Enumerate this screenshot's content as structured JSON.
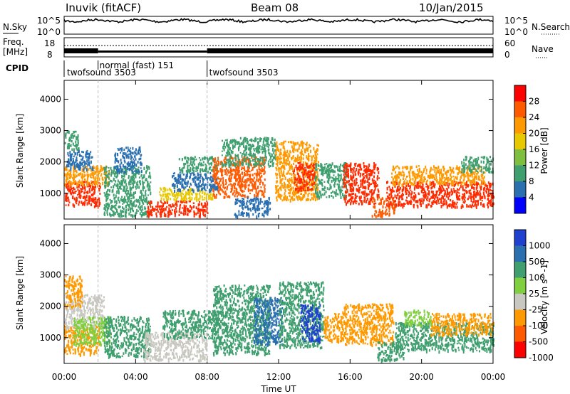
{
  "header": {
    "title": "Inuvik (fitACF)",
    "beam": "Beam 08",
    "date": "10/Jan/2015"
  },
  "nsky_panel": {
    "left_label": "N.Sky",
    "right_label": "N.Search",
    "ticks_left": [
      "10^5",
      "10^0"
    ],
    "ticks_right": [
      "10^5",
      "10^0"
    ]
  },
  "freq_panel": {
    "left_label_1": "Freq.",
    "left_label_2": "[MHz]",
    "right_label": "Nave",
    "ticks_left": [
      "18",
      "8"
    ],
    "ticks_right": [
      "60",
      "0"
    ]
  },
  "cpid": {
    "label": "CPID",
    "modes": [
      {
        "name": "twofsound 3503",
        "start_hour": 0,
        "end_hour": 1.9
      },
      {
        "name": "normal (fast) 151",
        "start_hour": 1.9,
        "end_hour": 8.0
      },
      {
        "name": "twofsound 3503",
        "start_hour": 8.0,
        "end_hour": 24
      }
    ]
  },
  "chart_data": [
    {
      "type": "heatmap",
      "quantity": "Power",
      "ylabel": "Slant Range [km]",
      "colorbar_label": "Power [dB]",
      "yticks": [
        1000,
        2000,
        3000,
        4000
      ],
      "colorbar_ticks": [
        "28",
        "24",
        "20",
        "16",
        "12",
        "8",
        "4"
      ],
      "colorbar_colors": [
        "#ff0000",
        "#ff5a00",
        "#ff9900",
        "#e8c800",
        "#7fbf3f",
        "#3f9f6f",
        "#2a6fb0",
        "#0000ff"
      ],
      "regions": [
        {
          "t0": 0.0,
          "t1": 2.0,
          "r0": 600,
          "r1": 1400,
          "color": "#ff2a00"
        },
        {
          "t0": 0.0,
          "t1": 2.5,
          "r0": 1300,
          "r1": 1900,
          "color": "#ff9900"
        },
        {
          "t0": 0.1,
          "t1": 1.6,
          "r0": 1800,
          "r1": 2400,
          "color": "#2a6fb0"
        },
        {
          "t0": 0.0,
          "t1": 0.8,
          "r0": 2400,
          "r1": 3000,
          "color": "#3f9f6f"
        },
        {
          "t0": 2.2,
          "t1": 4.8,
          "r0": 300,
          "r1": 1900,
          "color": "#3f9f6f"
        },
        {
          "t0": 2.8,
          "t1": 4.3,
          "r0": 1700,
          "r1": 2500,
          "color": "#2a6fb0"
        },
        {
          "t0": 4.6,
          "t1": 8.0,
          "r0": 300,
          "r1": 800,
          "color": "#ff2a00"
        },
        {
          "t0": 5.3,
          "t1": 8.3,
          "r0": 800,
          "r1": 1200,
          "color": "#e8c800"
        },
        {
          "t0": 6.0,
          "t1": 8.6,
          "r0": 1100,
          "r1": 1700,
          "color": "#2a6fb0"
        },
        {
          "t0": 6.4,
          "t1": 8.6,
          "r0": 1700,
          "r1": 2200,
          "color": "#3f9f6f"
        },
        {
          "t0": 8.3,
          "t1": 11.2,
          "r0": 900,
          "r1": 2200,
          "color": "#ff5a00"
        },
        {
          "t0": 8.8,
          "t1": 11.8,
          "r0": 1900,
          "r1": 2800,
          "color": "#3f9f6f"
        },
        {
          "t0": 9.5,
          "t1": 11.5,
          "r0": 300,
          "r1": 900,
          "color": "#2a6fb0"
        },
        {
          "t0": 11.8,
          "t1": 14.2,
          "r0": 800,
          "r1": 2700,
          "color": "#ff9900"
        },
        {
          "t0": 12.8,
          "t1": 14.0,
          "r0": 1100,
          "r1": 2000,
          "color": "#ff2a00"
        },
        {
          "t0": 14.0,
          "t1": 15.8,
          "r0": 900,
          "r1": 2000,
          "color": "#3f9f6f"
        },
        {
          "t0": 15.6,
          "t1": 17.6,
          "r0": 700,
          "r1": 2000,
          "color": "#ff2a00"
        },
        {
          "t0": 17.2,
          "t1": 18.5,
          "r0": 300,
          "r1": 900,
          "color": "#ff5a00"
        },
        {
          "t0": 18.0,
          "t1": 24.0,
          "r0": 600,
          "r1": 1400,
          "color": "#ff2a00"
        },
        {
          "t0": 18.3,
          "t1": 23.5,
          "r0": 1300,
          "r1": 1900,
          "color": "#ff9900"
        },
        {
          "t0": 22.2,
          "t1": 24.0,
          "r0": 1700,
          "r1": 2200,
          "color": "#3f9f6f"
        }
      ]
    },
    {
      "type": "heatmap",
      "quantity": "Velocity",
      "ylabel": "Slant Range [km]",
      "colorbar_label": "Velocity [m s^-1]",
      "yticks": [
        1000,
        2000,
        3000,
        4000
      ],
      "colorbar_ticks": [
        "1000",
        "500",
        "100",
        "25",
        "-25",
        "-100",
        "-500",
        "-1000"
      ],
      "colorbar_colors": [
        "#2040d0",
        "#2a6fb0",
        "#3f9f6f",
        "#7fcf3f",
        "#c8c8c0",
        "#ff9900",
        "#ff5a00",
        "#ff0000"
      ],
      "regions": [
        {
          "t0": 0.0,
          "t1": 2.0,
          "r0": 500,
          "r1": 1400,
          "color": "#ff9900"
        },
        {
          "t0": 0.0,
          "t1": 2.2,
          "r0": 1300,
          "r1": 2400,
          "color": "#c8c8c0"
        },
        {
          "t0": 0.5,
          "t1": 2.6,
          "r0": 800,
          "r1": 1700,
          "color": "#7fcf3f"
        },
        {
          "t0": 0.0,
          "t1": 1.0,
          "r0": 2000,
          "r1": 3000,
          "color": "#ff9900"
        },
        {
          "t0": 2.2,
          "t1": 4.8,
          "r0": 400,
          "r1": 1700,
          "color": "#3f9f6f"
        },
        {
          "t0": 4.4,
          "t1": 8.0,
          "r0": 300,
          "r1": 1200,
          "color": "#c8c8c0"
        },
        {
          "t0": 5.5,
          "t1": 8.6,
          "r0": 1000,
          "r1": 1900,
          "color": "#3f9f6f"
        },
        {
          "t0": 8.3,
          "t1": 11.5,
          "r0": 500,
          "r1": 2700,
          "color": "#3f9f6f"
        },
        {
          "t0": 10.6,
          "t1": 12.2,
          "r0": 800,
          "r1": 2300,
          "color": "#2a6fb0"
        },
        {
          "t0": 12.0,
          "t1": 14.5,
          "r0": 700,
          "r1": 2800,
          "color": "#3f9f6f"
        },
        {
          "t0": 13.2,
          "t1": 14.3,
          "r0": 900,
          "r1": 2100,
          "color": "#2040d0"
        },
        {
          "t0": 14.5,
          "t1": 15.6,
          "r0": 900,
          "r1": 1800,
          "color": "#ff9900"
        },
        {
          "t0": 15.5,
          "t1": 18.4,
          "r0": 800,
          "r1": 2100,
          "color": "#ff9900"
        },
        {
          "t0": 17.5,
          "t1": 19.0,
          "r0": 300,
          "r1": 900,
          "color": "#3f9f6f"
        },
        {
          "t0": 18.5,
          "t1": 24.0,
          "r0": 600,
          "r1": 1500,
          "color": "#3f9f6f"
        },
        {
          "t0": 20.5,
          "t1": 24.0,
          "r0": 1100,
          "r1": 1800,
          "color": "#ff9900"
        },
        {
          "t0": 19.0,
          "t1": 20.5,
          "r0": 1400,
          "r1": 1900,
          "color": "#7fcf3f"
        }
      ]
    }
  ],
  "time_axis": {
    "xlabel": "Time UT",
    "ticks": [
      {
        "hour": 0,
        "label": "00:00"
      },
      {
        "hour": 4,
        "label": "04:00"
      },
      {
        "hour": 8,
        "label": "08:00"
      },
      {
        "hour": 12,
        "label": "12:00"
      },
      {
        "hour": 16,
        "label": "16:00"
      },
      {
        "hour": 20,
        "label": "20:00"
      },
      {
        "hour": 24,
        "label": "00:00"
      }
    ]
  },
  "scan_markers_hours": [
    1.9,
    8.0
  ]
}
